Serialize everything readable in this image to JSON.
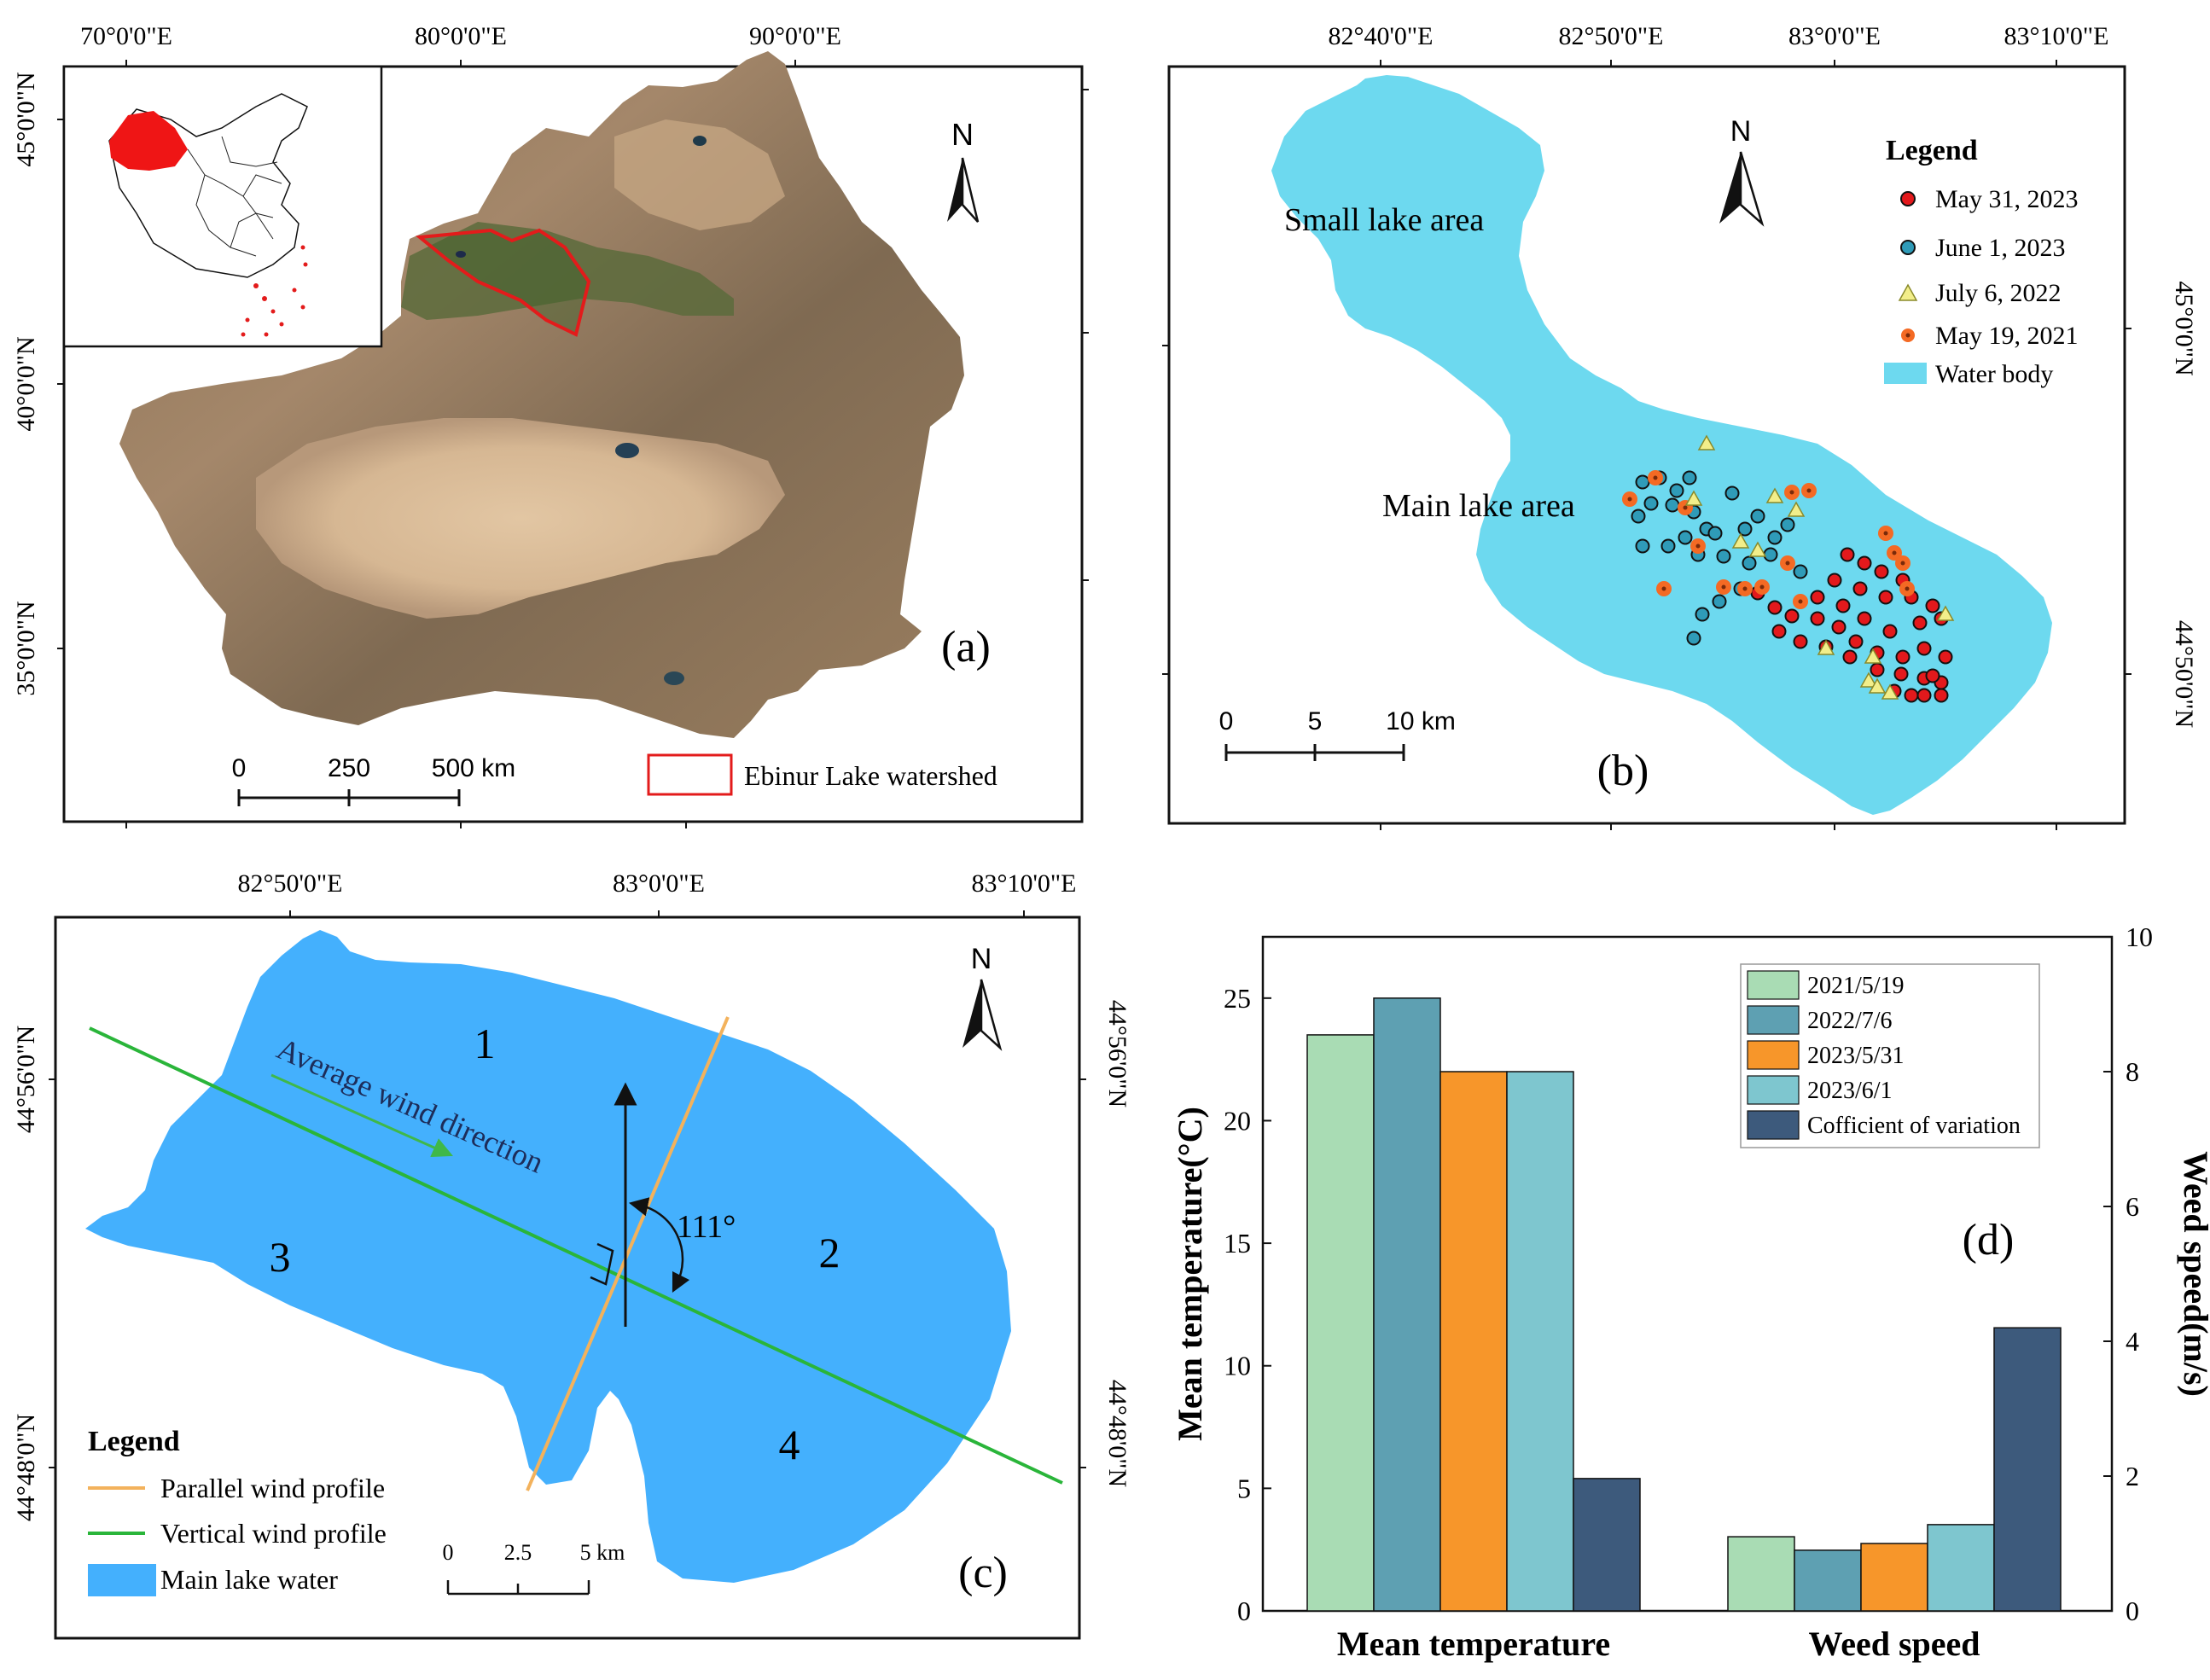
{
  "panel_a": {
    "top_lon_labels": [
      "70°0'0\"E",
      "80°0'0\"E",
      "90°0'0\"E"
    ],
    "left_lat_labels": [
      "45°0'0\"N",
      "40°0'0\"N",
      "35°0'0\"N"
    ],
    "north": "N",
    "scale_labels": [
      "0",
      "250",
      "500 km"
    ],
    "legend_watershed": "Ebinur Lake watershed",
    "panel_label": "(a)"
  },
  "panel_b": {
    "top_lon_labels": [
      "82°40'0\"E",
      "82°50'0\"E",
      "83°0'0\"E",
      "83°10'0\"E"
    ],
    "right_lat_labels": [
      "45°0'0\"N",
      "44°50'0\"N"
    ],
    "north": "N",
    "small_lake_label": "Small lake area",
    "main_lake_label": "Main lake area",
    "legend_title": "Legend",
    "legend_items": [
      "May 31, 2023",
      "June 1, 2023",
      "July 6, 2022",
      "May 19, 2021",
      "Water body"
    ],
    "scale_labels": [
      "0",
      "5",
      "10 km"
    ],
    "panel_label": "(b)",
    "colors": {
      "water": "#6dd9ef",
      "may31": "#e3191c",
      "june1": "#2f9bb8",
      "july6": "#f2ee8a",
      "may19": "#f46a24"
    }
  },
  "panel_c": {
    "top_lon_labels": [
      "82°50'0\"E",
      "83°0'0\"E",
      "83°10'0\"E"
    ],
    "left_lat_labels": [
      "44°56'0\"N",
      "44°48'0\"N"
    ],
    "right_lat_labels": [
      "44°56'0\"N",
      "44°48'0\"N"
    ],
    "north": "N",
    "zones": [
      "1",
      "2",
      "3",
      "4"
    ],
    "wind_label": "Average wind direction",
    "angle_label": "111°",
    "legend_title": "Legend",
    "legend_items": [
      "Parallel wind profile",
      "Vertical wind profile",
      "Main lake water"
    ],
    "scale_labels": [
      "0",
      "2.5",
      "5 km"
    ],
    "panel_label": "(c)",
    "colors": {
      "water": "#44b0fd",
      "parallel": "#f3b25c",
      "vertical": "#2ab53a"
    }
  },
  "chart_data": {
    "type": "bar",
    "categories": [
      "Mean temperature",
      "Weed speed"
    ],
    "series": [
      {
        "name": "2021/5/19",
        "values": [
          23.5,
          1.1
        ],
        "color": "#a9dcb4"
      },
      {
        "name": "2022/7/6",
        "values": [
          25.0,
          0.9
        ],
        "color": "#5ea0b2"
      },
      {
        "name": "2023/5/31",
        "values": [
          22.0,
          1.0
        ],
        "color": "#f7962a"
      },
      {
        "name": "2023/6/1",
        "values": [
          22.0,
          1.28
        ],
        "color": "#7ec6cf"
      },
      {
        "name": "Cofficient of variation",
        "values": [
          5.4,
          4.2
        ],
        "color": "#3d5a7c"
      }
    ],
    "ylabel_left": "Mean temperature(°C)",
    "ylabel_right": "Weed speed(m/s)",
    "ylim_left": [
      0,
      27.5
    ],
    "ylim_right": [
      0,
      10
    ],
    "yticks_left": [
      "0",
      "5",
      "10",
      "15",
      "20",
      "25"
    ],
    "yticks_right": [
      "0",
      "2",
      "4",
      "6",
      "8",
      "10"
    ],
    "panel_label": "(d)"
  }
}
